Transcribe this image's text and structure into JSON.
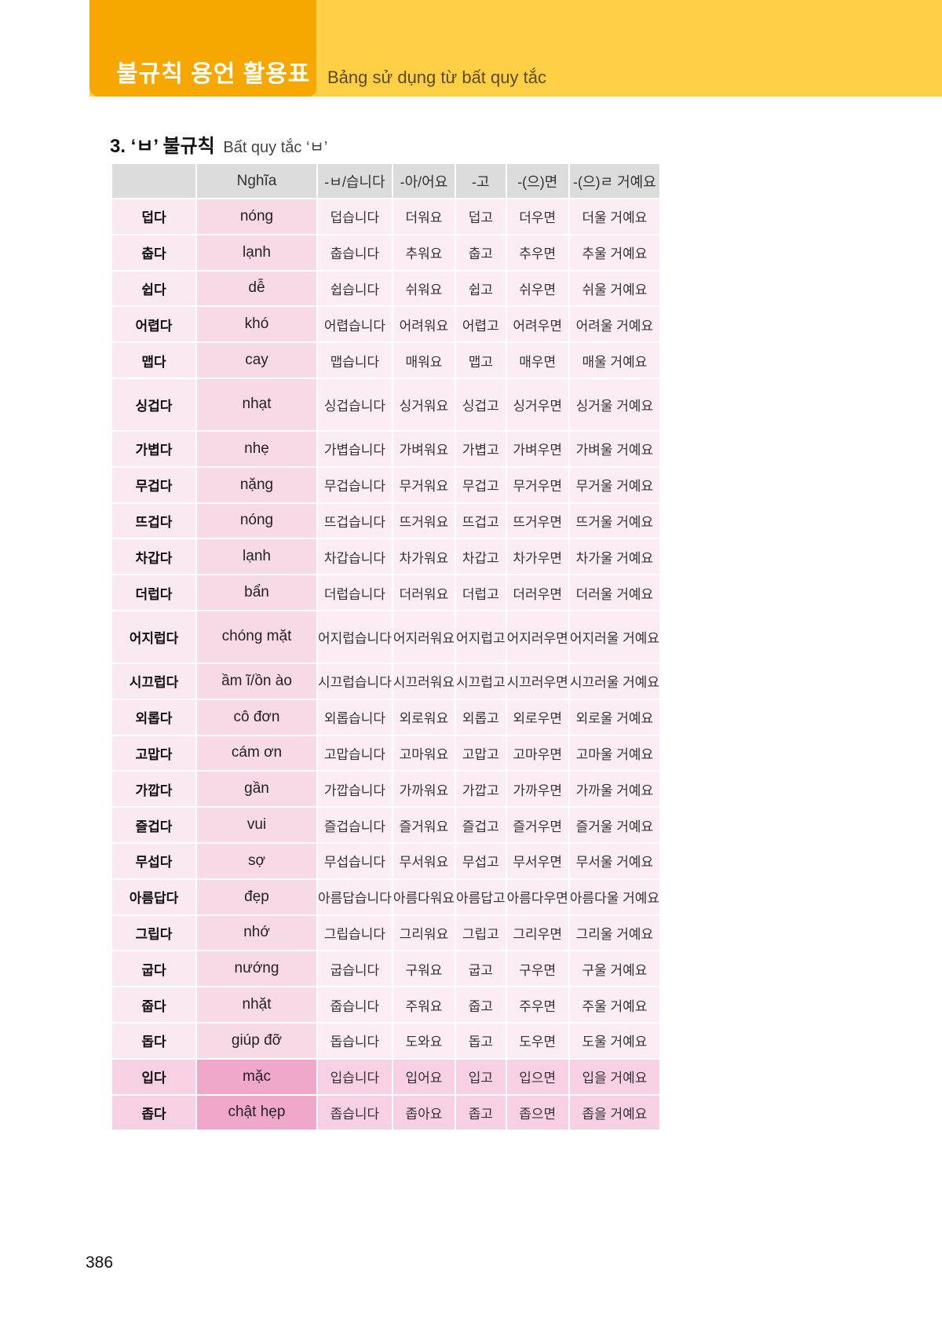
{
  "header": {
    "title": "불규칙 용언 활용표",
    "subtitle": "Bảng sử dụng từ bất quy tắc"
  },
  "section": {
    "title": "3. ‘ㅂ’ 불규칙",
    "subtitle": "Bất quy tắc ‘ㅂ’"
  },
  "colors": {
    "tab": "#f6a800",
    "band": "#ffcf45",
    "header_cell": "#dcdcdc",
    "highlight": "#f0a8ca"
  },
  "table": {
    "columns": [
      "",
      "Nghĩa",
      "-ㅂ/습니다",
      "-아/어요",
      "-고",
      "-(으)면",
      "-(으)ㄹ 거예요"
    ],
    "rows": [
      [
        "덥다",
        "nóng",
        "덥습니다",
        "더워요",
        "덥고",
        "더우면",
        "더울 거예요"
      ],
      [
        "춥다",
        "lạnh",
        "춥습니다",
        "추워요",
        "춥고",
        "추우면",
        "추울 거예요"
      ],
      [
        "쉽다",
        "dễ",
        "쉽습니다",
        "쉬워요",
        "쉽고",
        "쉬우면",
        "쉬울 거예요"
      ],
      [
        "어렵다",
        "khó",
        "어렵습니다",
        "어려워요",
        "어렵고",
        "어려우면",
        "어려울 거예요"
      ],
      [
        "맵다",
        "cay",
        "맵습니다",
        "매워요",
        "맵고",
        "매우면",
        "매울 거예요"
      ],
      [
        "싱겁다",
        "nhạt",
        "싱겁습니다",
        "싱거워요",
        "싱겁고",
        "싱거우면",
        "싱거울 거예요"
      ],
      [
        "가볍다",
        "nhẹ",
        "가볍습니다",
        "가벼워요",
        "가볍고",
        "가벼우면",
        "가벼울 거예요"
      ],
      [
        "무겁다",
        "nặng",
        "무겁습니다",
        "무거워요",
        "무겁고",
        "무거우면",
        "무거울 거예요"
      ],
      [
        "뜨겁다",
        "nóng",
        "뜨겁습니다",
        "뜨거워요",
        "뜨겁고",
        "뜨거우면",
        "뜨거울 거예요"
      ],
      [
        "차갑다",
        "lạnh",
        "차갑습니다",
        "차가워요",
        "차갑고",
        "차가우면",
        "차가울 거예요"
      ],
      [
        "더럽다",
        "bẩn",
        "더럽습니다",
        "더러워요",
        "더럽고",
        "더러우면",
        "더러울 거예요"
      ],
      [
        "어지럽다",
        "chóng mặt",
        "어지럽습니다",
        "어지러워요",
        "어지럽고",
        "어지러우면",
        "어지러울 거예요"
      ],
      [
        "시끄럽다",
        "ầm ĩ/ồn ào",
        "시끄럽습니다",
        "시끄러워요",
        "시끄럽고",
        "시끄러우면",
        "시끄러울 거예요"
      ],
      [
        "외롭다",
        "cô đơn",
        "외롭습니다",
        "외로워요",
        "외롭고",
        "외로우면",
        "외로울 거예요"
      ],
      [
        "고맙다",
        "cám ơn",
        "고맙습니다",
        "고마워요",
        "고맙고",
        "고마우면",
        "고마울 거예요"
      ],
      [
        "가깝다",
        "gần",
        "가깝습니다",
        "가까워요",
        "가깝고",
        "가까우면",
        "가까울 거예요"
      ],
      [
        "즐겁다",
        "vui",
        "즐겁습니다",
        "즐거워요",
        "즐겁고",
        "즐거우면",
        "즐거울 거예요"
      ],
      [
        "무섭다",
        "sợ",
        "무섭습니다",
        "무서워요",
        "무섭고",
        "무서우면",
        "무서울 거예요"
      ],
      [
        "아름답다",
        "đẹp",
        "아름답습니다",
        "아름다워요",
        "아름답고",
        "아름다우면",
        "아름다울 거예요"
      ],
      [
        "그립다",
        "nhớ",
        "그립습니다",
        "그리워요",
        "그립고",
        "그리우면",
        "그리울 거예요"
      ],
      [
        "굽다",
        "nướng",
        "굽습니다",
        "구워요",
        "굽고",
        "구우면",
        "구울 거예요"
      ],
      [
        "줍다",
        "nhặt",
        "줍습니다",
        "주워요",
        "줍고",
        "주우면",
        "주울 거예요"
      ],
      [
        "돕다",
        "giúp đỡ",
        "돕습니다",
        "도와요",
        "돕고",
        "도우면",
        "도울 거예요"
      ],
      [
        "입다",
        "mặc",
        "입습니다",
        "입어요",
        "입고",
        "입으면",
        "입을 거예요"
      ],
      [
        "좁다",
        "chật hẹp",
        "좁습니다",
        "좁아요",
        "좁고",
        "좁으면",
        "좁을 거예요"
      ]
    ],
    "highlighted_rows": [
      "입다",
      "좁다"
    ]
  },
  "page_number": "386"
}
